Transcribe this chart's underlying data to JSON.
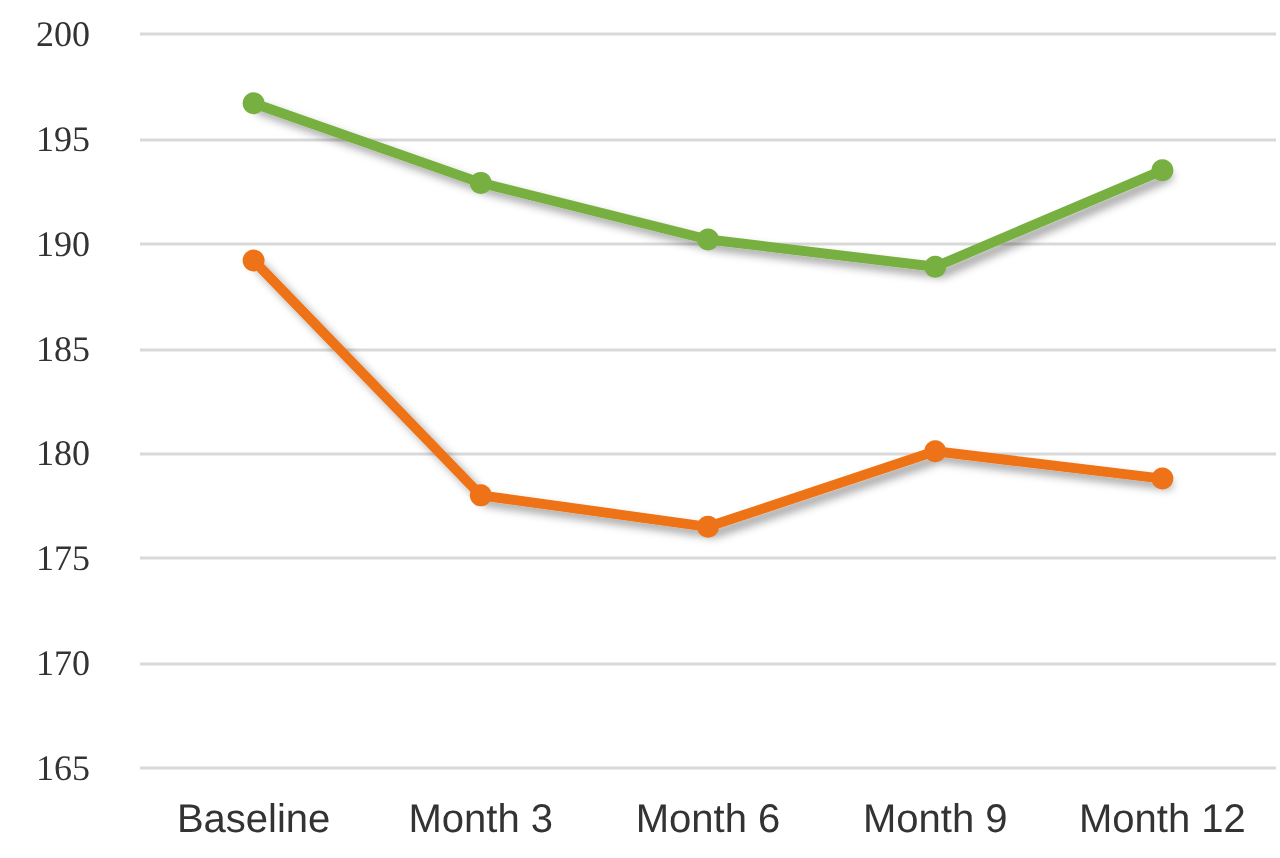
{
  "chart_data": {
    "type": "line",
    "categories": [
      "Baseline",
      "Month 3",
      "Month 6",
      "Month 9",
      "Month 12"
    ],
    "series": [
      {
        "color": "#77b041",
        "values": [
          196.7,
          192.9,
          190.2,
          188.9,
          193.5
        ]
      },
      {
        "color": "#ee7318",
        "values": [
          189.2,
          178.0,
          176.5,
          180.1,
          178.8
        ]
      }
    ],
    "ylim": [
      165,
      200
    ],
    "yticks": [
      165,
      170,
      175,
      180,
      185,
      190,
      195,
      200
    ],
    "grid": "y",
    "marker": "circle",
    "line_style": "solid"
  }
}
